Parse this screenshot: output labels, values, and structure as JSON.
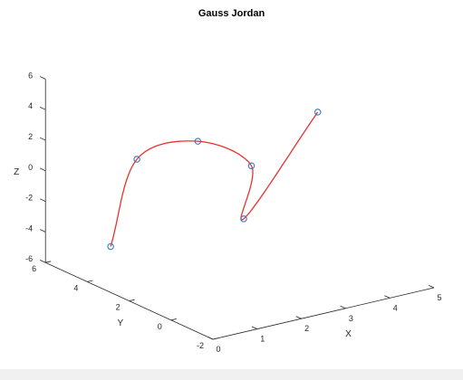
{
  "chart_data": {
    "type": "line",
    "title": "Gauss Jordan",
    "xlabel": "X",
    "ylabel": "Y",
    "zlabel": "Z",
    "xlim": [
      0,
      5
    ],
    "ylim": [
      -2,
      6
    ],
    "zlim": [
      -6,
      6
    ],
    "x_ticks": [
      "0",
      "1",
      "2",
      "3",
      "4",
      "5"
    ],
    "y_ticks": [
      "-2",
      "0",
      "2",
      "4",
      "6"
    ],
    "z_ticks": [
      "-6",
      "-4",
      "-2",
      "0",
      "2",
      "4",
      "6"
    ],
    "curve_color": "#e8322e",
    "marker_color": "#3a78c2",
    "markers": [
      {
        "x": 1.0,
        "y": 5.0,
        "z": -5.0
      },
      {
        "x": 1.5,
        "y": 4.8,
        "z": 0.5
      },
      {
        "x": 2.5,
        "y": 4.0,
        "z": 1.5
      },
      {
        "x": 3.0,
        "y": 2.5,
        "z": 0.5
      },
      {
        "x": 2.4,
        "y": 1.6,
        "z": -2.0
      },
      {
        "x": 4.5,
        "y": 2.5,
        "z": 3.0
      }
    ]
  }
}
